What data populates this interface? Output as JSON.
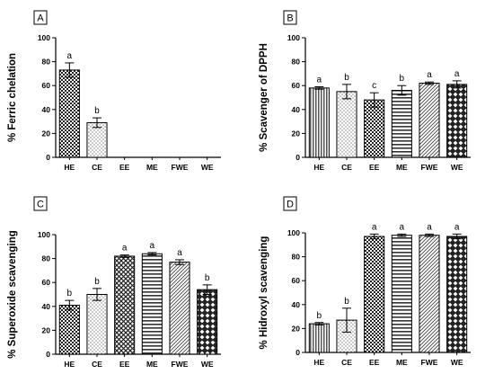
{
  "chart_data": [
    {
      "type": "bar",
      "panel": "A",
      "ylabel": "% Ferric chelation",
      "categories": [
        "HE",
        "CE",
        "EE",
        "ME",
        "FWE",
        "WE"
      ],
      "values": [
        73,
        29,
        null,
        null,
        null,
        null
      ],
      "errors": [
        6,
        4,
        null,
        null,
        null,
        null
      ],
      "letters": [
        "a",
        "b",
        "",
        "",
        "",
        ""
      ],
      "ylim": [
        0,
        100
      ],
      "yticks": [
        "0",
        "20",
        "40",
        "60",
        "80",
        "100"
      ],
      "patterns": [
        "checker",
        "dots",
        "crosshatch",
        "hstripes",
        "diag",
        "diamond"
      ]
    },
    {
      "type": "bar",
      "panel": "B",
      "ylabel": "% Scavenger of DPPH",
      "categories": [
        "HE",
        "CE",
        "EE",
        "ME",
        "FWE",
        "WE"
      ],
      "values": [
        58,
        55,
        48,
        56,
        62,
        61
      ],
      "errors": [
        1,
        6,
        6,
        4,
        1,
        3
      ],
      "letters": [
        "a",
        "b",
        "c",
        "b",
        "a",
        "a"
      ],
      "ylim": [
        0,
        100
      ],
      "yticks": [
        "0",
        "20",
        "40",
        "60",
        "80",
        "100"
      ],
      "patterns": [
        "vstripes",
        "dots",
        "checker",
        "hstripes",
        "diag",
        "diamond"
      ]
    },
    {
      "type": "bar",
      "panel": "C",
      "ylabel": "% Superoxide scavenging",
      "categories": [
        "HE",
        "CE",
        "EE",
        "ME",
        "FWE",
        "WE"
      ],
      "values": [
        41,
        50,
        82,
        84,
        77,
        54
      ],
      "errors": [
        4,
        5,
        1,
        1,
        2,
        4
      ],
      "letters": [
        "b",
        "b",
        "a",
        "a",
        "a",
        "b"
      ],
      "ylim": [
        0,
        100
      ],
      "yticks": [
        "0",
        "20",
        "40",
        "60",
        "80",
        "100"
      ],
      "patterns": [
        "checker",
        "dots",
        "crosshatch",
        "hstripes",
        "diag",
        "diamond"
      ]
    },
    {
      "type": "bar",
      "panel": "D",
      "ylabel": "% Hidroxyl scavenging",
      "categories": [
        "HE",
        "CE",
        "EE",
        "ME",
        "FWE",
        "WE"
      ],
      "values": [
        24,
        27,
        97,
        98,
        98,
        97
      ],
      "errors": [
        1,
        10,
        2,
        1,
        1,
        2
      ],
      "letters": [
        "b",
        "b",
        "a",
        "a",
        "a",
        "a"
      ],
      "ylim": [
        0,
        100
      ],
      "yticks": [
        "0",
        "20",
        "40",
        "60",
        "80",
        "100"
      ],
      "patterns": [
        "vstripes",
        "dots",
        "checker",
        "hstripes",
        "diag",
        "diamond"
      ]
    }
  ]
}
